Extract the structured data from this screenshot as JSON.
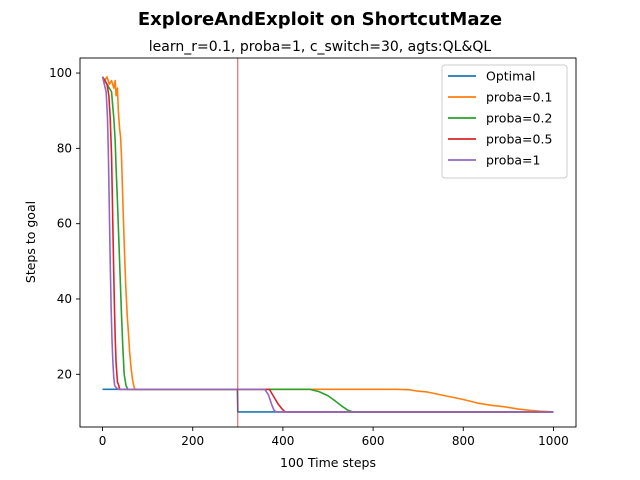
{
  "chart_data": {
    "type": "line",
    "title": "ExploreAndExploit on ShortcutMaze",
    "subtitle": "learn_r=0.1, proba=1, c_switch=30, agts:QL&QL",
    "xlabel": "100 Time steps",
    "ylabel": "Steps to goal",
    "xlim": [
      -50,
      1050
    ],
    "ylim": [
      6,
      104
    ],
    "xticks": [
      0,
      200,
      400,
      600,
      800,
      1000
    ],
    "yticks": [
      20,
      40,
      60,
      80,
      100
    ],
    "grid": false,
    "legend_position": "top-right",
    "vline": {
      "x": 300,
      "color": "#d62728"
    },
    "series": [
      {
        "name": "Optimal",
        "color": "#1f77b4",
        "points": [
          [
            0,
            16
          ],
          [
            299,
            16
          ],
          [
            300,
            10
          ],
          [
            1000,
            10
          ]
        ]
      },
      {
        "name": "proba=0.1",
        "color": "#ff7f0e",
        "points": [
          [
            0,
            99
          ],
          [
            5,
            98
          ],
          [
            10,
            99
          ],
          [
            15,
            97
          ],
          [
            20,
            98
          ],
          [
            25,
            96
          ],
          [
            28,
            98
          ],
          [
            30,
            94
          ],
          [
            33,
            96
          ],
          [
            35,
            90
          ],
          [
            38,
            85
          ],
          [
            40,
            83
          ],
          [
            42,
            78
          ],
          [
            44,
            70
          ],
          [
            46,
            62
          ],
          [
            48,
            55
          ],
          [
            50,
            48
          ],
          [
            52,
            42
          ],
          [
            55,
            35
          ],
          [
            58,
            30
          ],
          [
            60,
            26
          ],
          [
            63,
            22
          ],
          [
            66,
            19
          ],
          [
            69,
            17
          ],
          [
            72,
            16
          ],
          [
            300,
            16
          ],
          [
            650,
            16
          ],
          [
            680,
            15.9
          ],
          [
            700,
            15.5
          ],
          [
            720,
            15.3
          ],
          [
            740,
            14.8
          ],
          [
            760,
            14.3
          ],
          [
            780,
            13.8
          ],
          [
            800,
            13.3
          ],
          [
            830,
            12.4
          ],
          [
            860,
            11.8
          ],
          [
            890,
            11.4
          ],
          [
            920,
            10.8
          ],
          [
            950,
            10.4
          ],
          [
            970,
            10.2
          ],
          [
            1000,
            10
          ]
        ]
      },
      {
        "name": "proba=0.2",
        "color": "#2ca02c",
        "points": [
          [
            0,
            99
          ],
          [
            5,
            98
          ],
          [
            10,
            97
          ],
          [
            15,
            96
          ],
          [
            20,
            95
          ],
          [
            22,
            92
          ],
          [
            25,
            88
          ],
          [
            28,
            82
          ],
          [
            30,
            75
          ],
          [
            33,
            66
          ],
          [
            36,
            56
          ],
          [
            39,
            46
          ],
          [
            42,
            36
          ],
          [
            45,
            27
          ],
          [
            48,
            20
          ],
          [
            52,
            17
          ],
          [
            56,
            16
          ],
          [
            300,
            16
          ],
          [
            460,
            16
          ],
          [
            480,
            15.4
          ],
          [
            500,
            14.3
          ],
          [
            515,
            13.0
          ],
          [
            530,
            11.6
          ],
          [
            545,
            10.4
          ],
          [
            555,
            10
          ],
          [
            1000,
            10
          ]
        ]
      },
      {
        "name": "proba=0.5",
        "color": "#d62728",
        "points": [
          [
            0,
            99
          ],
          [
            5,
            98
          ],
          [
            10,
            97
          ],
          [
            14,
            94
          ],
          [
            17,
            88
          ],
          [
            20,
            78
          ],
          [
            22,
            65
          ],
          [
            24,
            52
          ],
          [
            26,
            40
          ],
          [
            28,
            30
          ],
          [
            30,
            23
          ],
          [
            33,
            18
          ],
          [
            36,
            17
          ],
          [
            38,
            16
          ],
          [
            300,
            16
          ],
          [
            370,
            16
          ],
          [
            380,
            14
          ],
          [
            390,
            12
          ],
          [
            398,
            10.8
          ],
          [
            405,
            10
          ],
          [
            1000,
            10
          ]
        ]
      },
      {
        "name": "proba=1",
        "color": "#9467bd",
        "points": [
          [
            0,
            99
          ],
          [
            4,
            97
          ],
          [
            8,
            95
          ],
          [
            11,
            88
          ],
          [
            13,
            78
          ],
          [
            15,
            64
          ],
          [
            17,
            50
          ],
          [
            19,
            38
          ],
          [
            21,
            29
          ],
          [
            23,
            23
          ],
          [
            25,
            19
          ],
          [
            27,
            17
          ],
          [
            30,
            16.5
          ],
          [
            35,
            16
          ],
          [
            300,
            16
          ],
          [
            360,
            16
          ],
          [
            368,
            14.5
          ],
          [
            375,
            12
          ],
          [
            380,
            10.5
          ],
          [
            385,
            10
          ],
          [
            1000,
            10
          ]
        ]
      }
    ]
  }
}
